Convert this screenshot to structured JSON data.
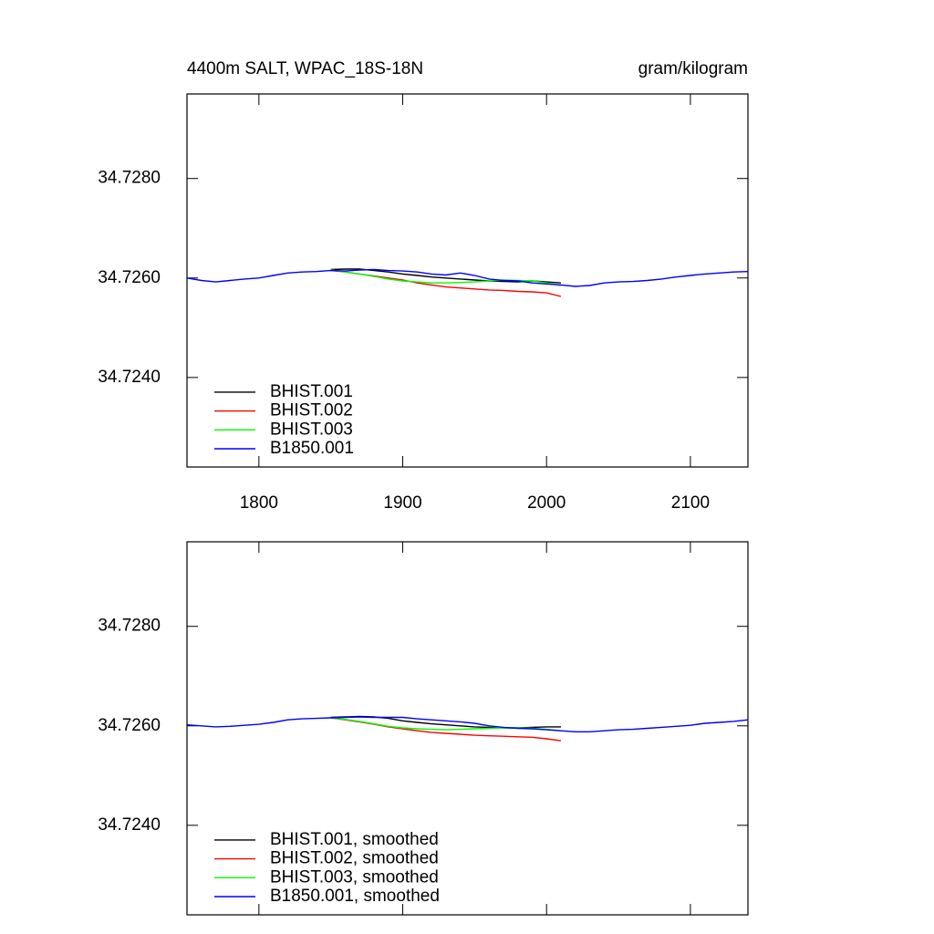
{
  "chart_data": [
    {
      "type": "line",
      "title": "4400m SALT, WPAC_18S-18N",
      "subtitle": "gram/kilogram",
      "x": [
        1750,
        1760,
        1770,
        1780,
        1790,
        1800,
        1810,
        1820,
        1830,
        1840,
        1850,
        1860,
        1870,
        1880,
        1890,
        1900,
        1910,
        1920,
        1930,
        1940,
        1950,
        1960,
        1970,
        1980,
        1990,
        2000,
        2010,
        2020,
        2030,
        2040,
        2050,
        2060,
        2070,
        2080,
        2090,
        2100,
        2110,
        2120,
        2130,
        2140
      ],
      "xlim": [
        1750,
        2140
      ],
      "xticks": [
        1800,
        1900,
        2000,
        2100
      ],
      "xtick_labels": true,
      "ylim": [
        34.7222,
        34.7297
      ],
      "yticks": [
        {
          "value": 34.724,
          "label": "34.7240"
        },
        {
          "value": 34.726,
          "label": "34.7260"
        },
        {
          "value": 34.728,
          "label": "34.7280"
        }
      ],
      "legend": "lower left",
      "series": [
        {
          "name": "BHIST.001",
          "color": "#000000",
          "values": [
            null,
            null,
            null,
            null,
            null,
            null,
            null,
            null,
            null,
            null,
            34.72617,
            34.72618,
            34.72618,
            34.72615,
            34.72612,
            34.72608,
            34.72605,
            34.72602,
            34.726,
            34.72598,
            34.72596,
            34.72594,
            34.72593,
            34.72592,
            34.72594,
            34.72592,
            34.7259,
            null,
            null,
            null,
            null,
            null,
            null,
            null,
            null,
            null,
            null,
            null,
            null,
            null
          ]
        },
        {
          "name": "BHIST.002",
          "color": "#ff0000",
          "values": [
            null,
            null,
            null,
            null,
            null,
            null,
            null,
            null,
            null,
            null,
            34.72615,
            34.72612,
            34.72608,
            34.72604,
            34.726,
            34.72596,
            34.7259,
            34.72586,
            34.72582,
            34.7258,
            34.72578,
            34.72576,
            34.72575,
            34.72573,
            34.72572,
            34.7257,
            34.72563,
            null,
            null,
            null,
            null,
            null,
            null,
            null,
            null,
            null,
            null,
            null,
            null,
            null
          ]
        },
        {
          "name": "BHIST.003",
          "color": "#00ff00",
          "values": [
            null,
            null,
            null,
            null,
            null,
            null,
            null,
            null,
            null,
            null,
            34.72616,
            34.72612,
            34.72608,
            34.72603,
            34.72598,
            34.72594,
            34.72592,
            34.7259,
            34.7259,
            34.72591,
            34.72592,
            34.72594,
            34.72596,
            34.72595,
            34.72594,
            34.7259,
            34.72585,
            null,
            null,
            null,
            null,
            null,
            null,
            null,
            null,
            null,
            null,
            null,
            null,
            null
          ]
        },
        {
          "name": "B1850.001",
          "color": "#0000ff",
          "values": [
            34.726,
            34.72595,
            34.72592,
            34.72595,
            34.72598,
            34.726,
            34.72605,
            34.7261,
            34.72612,
            34.72613,
            34.72615,
            34.72614,
            34.72616,
            34.72617,
            34.72615,
            34.72614,
            34.72612,
            34.72608,
            34.72606,
            34.7261,
            34.72605,
            34.72598,
            34.72595,
            34.72594,
            34.7259,
            34.72588,
            34.72586,
            34.72583,
            34.72585,
            34.7259,
            34.72592,
            34.72593,
            34.72595,
            34.72598,
            34.72602,
            34.72605,
            34.72608,
            34.7261,
            34.72612,
            34.72613
          ]
        }
      ]
    },
    {
      "type": "line",
      "x": [
        1750,
        1760,
        1770,
        1780,
        1790,
        1800,
        1810,
        1820,
        1830,
        1840,
        1850,
        1860,
        1870,
        1880,
        1890,
        1900,
        1910,
        1920,
        1930,
        1940,
        1950,
        1960,
        1970,
        1980,
        1990,
        2000,
        2010,
        2020,
        2030,
        2040,
        2050,
        2060,
        2070,
        2080,
        2090,
        2100,
        2110,
        2120,
        2130,
        2140
      ],
      "xlim": [
        1750,
        2140
      ],
      "xticks": [
        1800,
        1900,
        2000,
        2100
      ],
      "xtick_labels": false,
      "ylim": [
        34.7222,
        34.7297
      ],
      "yticks": [
        {
          "value": 34.724,
          "label": "34.7240"
        },
        {
          "value": 34.726,
          "label": "34.7260"
        },
        {
          "value": 34.728,
          "label": "34.7280"
        }
      ],
      "legend": "lower left",
      "series": [
        {
          "name": "BHIST.001, smoothed",
          "color": "#000000",
          "values": [
            null,
            null,
            null,
            null,
            null,
            null,
            null,
            null,
            null,
            null,
            34.72617,
            34.72618,
            34.72619,
            34.72618,
            34.72615,
            34.7261,
            34.72607,
            34.72604,
            34.72602,
            34.726,
            34.72598,
            34.72597,
            34.72596,
            34.72596,
            34.72597,
            34.72598,
            34.72598,
            null,
            null,
            null,
            null,
            null,
            null,
            null,
            null,
            null,
            null,
            null,
            null,
            null
          ]
        },
        {
          "name": "BHIST.002, smoothed",
          "color": "#ff0000",
          "values": [
            null,
            null,
            null,
            null,
            null,
            null,
            null,
            null,
            null,
            null,
            34.72616,
            34.72612,
            34.72608,
            34.72603,
            34.72598,
            34.72594,
            34.7259,
            34.72587,
            34.72585,
            34.72583,
            34.72581,
            34.7258,
            34.72579,
            34.72578,
            34.72577,
            34.72574,
            34.7257,
            null,
            null,
            null,
            null,
            null,
            null,
            null,
            null,
            null,
            null,
            null,
            null,
            null
          ]
        },
        {
          "name": "BHIST.003, smoothed",
          "color": "#00ff00",
          "values": [
            null,
            null,
            null,
            null,
            null,
            null,
            null,
            null,
            null,
            null,
            34.72616,
            34.72613,
            34.72609,
            34.72604,
            34.72599,
            34.72596,
            34.72594,
            34.72593,
            34.72592,
            34.72593,
            34.72594,
            34.72595,
            34.72596,
            34.72596,
            34.72595,
            34.72593,
            34.7259,
            null,
            null,
            null,
            null,
            null,
            null,
            null,
            null,
            null,
            null,
            null,
            null,
            null
          ]
        },
        {
          "name": "B1850.001, smoothed",
          "color": "#0000ff",
          "values": [
            34.72602,
            34.726,
            34.72598,
            34.72599,
            34.72601,
            34.72603,
            34.72607,
            34.72612,
            34.72614,
            34.72615,
            34.72616,
            34.72617,
            34.72618,
            34.72617,
            34.72617,
            34.72617,
            34.72614,
            34.72612,
            34.7261,
            34.72608,
            34.72605,
            34.726,
            34.72597,
            34.72595,
            34.72594,
            34.72592,
            34.7259,
            34.72588,
            34.72588,
            34.7259,
            34.72592,
            34.72593,
            34.72595,
            34.72597,
            34.72599,
            34.72601,
            34.72605,
            34.72607,
            34.72609,
            34.72612
          ]
        }
      ]
    }
  ]
}
